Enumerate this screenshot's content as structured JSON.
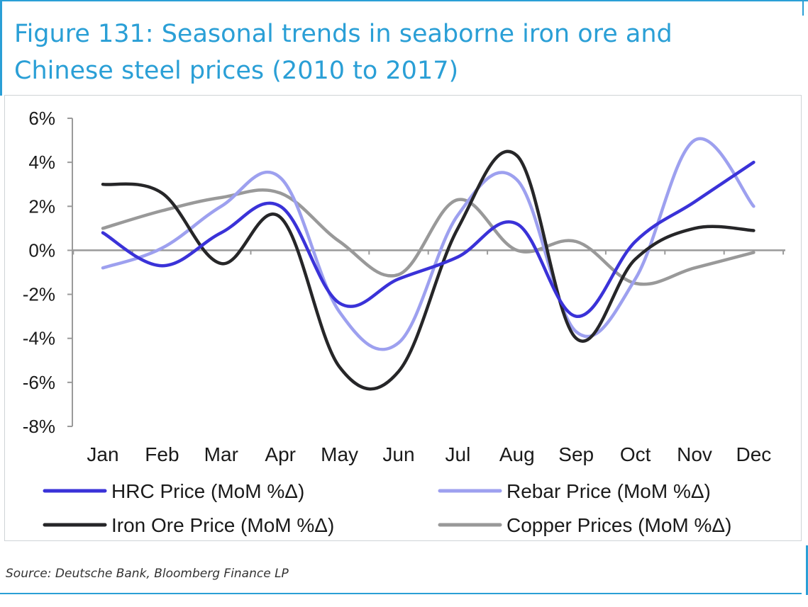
{
  "title_line1": "Figure 131: Seasonal trends in seaborne iron ore and",
  "title_line2": "Chinese steel prices (2010 to 2017)",
  "source": "Source: Deutsche Bank, Bloomberg Finance LP",
  "chart_data": {
    "type": "line",
    "categories": [
      "Jan",
      "Feb",
      "Mar",
      "Apr",
      "May",
      "Jun",
      "Jul",
      "Aug",
      "Sep",
      "Oct",
      "Nov",
      "Dec"
    ],
    "ylim": [
      -8,
      6
    ],
    "yticks": [
      6,
      4,
      2,
      0,
      -2,
      -4,
      -6,
      -8
    ],
    "ytick_labels": [
      "6%",
      "4%",
      "2%",
      "0%",
      "-2%",
      "-4%",
      "-6%",
      "-8%"
    ],
    "grid": false,
    "legend_position": "bottom",
    "series": [
      {
        "name": "HRC Price (MoM %Δ)",
        "color": "#3a32d8",
        "values": [
          0.8,
          -0.7,
          0.8,
          2.0,
          -2.4,
          -1.3,
          -0.3,
          1.2,
          -3.0,
          0.4,
          2.2,
          4.0
        ]
      },
      {
        "name": "Rebar Price (MoM %Δ)",
        "color": "#9da0ef",
        "values": [
          -0.8,
          0.1,
          2.0,
          3.3,
          -2.8,
          -4.2,
          1.6,
          3.2,
          -3.7,
          -1.3,
          5.0,
          2.0
        ]
      },
      {
        "name": "Iron Ore Price (MoM %Δ)",
        "color": "#262628",
        "values": [
          3.0,
          2.6,
          -0.6,
          1.5,
          -5.3,
          -5.5,
          1.0,
          4.3,
          -4.0,
          -0.4,
          1.0,
          0.9
        ]
      },
      {
        "name": "Copper Prices (MoM %Δ)",
        "color": "#999999",
        "values": [
          1.0,
          1.8,
          2.4,
          2.6,
          0.4,
          -1.1,
          2.3,
          0.0,
          0.4,
          -1.5,
          -0.8,
          -0.1
        ]
      }
    ]
  }
}
